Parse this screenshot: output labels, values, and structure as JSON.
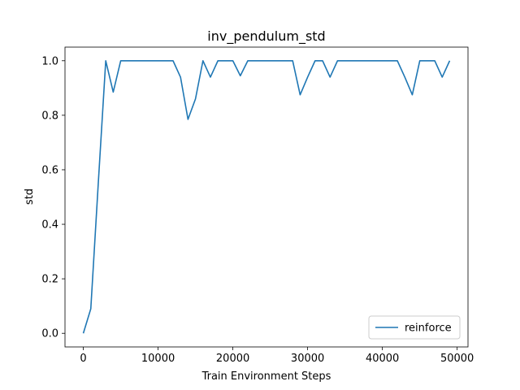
{
  "chart_data": {
    "type": "line",
    "title": "inv_pendulum_std",
    "xlabel": "Train Environment Steps",
    "ylabel": "std",
    "xlim": [
      -2450,
      51450
    ],
    "ylim": [
      -0.05,
      1.05
    ],
    "xticks": [
      0,
      10000,
      20000,
      30000,
      40000,
      50000
    ],
    "yticks": [
      0.0,
      0.2,
      0.4,
      0.6,
      0.8,
      1.0
    ],
    "xtick_labels": [
      "0",
      "10000",
      "20000",
      "30000",
      "40000",
      "50000"
    ],
    "ytick_labels": [
      "0.0",
      "0.2",
      "0.4",
      "0.6",
      "0.8",
      "1.0"
    ],
    "grid": false,
    "legend_position": "lower-right",
    "series": [
      {
        "name": "reinforce",
        "color": "#1f77b4",
        "x": [
          0,
          1000,
          2000,
          3000,
          4000,
          5000,
          6000,
          7000,
          8000,
          9000,
          10000,
          11000,
          12000,
          13000,
          14000,
          15000,
          16000,
          17000,
          18000,
          19000,
          20000,
          21000,
          22000,
          23000,
          24000,
          25000,
          26000,
          27000,
          28000,
          29000,
          30000,
          31000,
          32000,
          33000,
          34000,
          35000,
          36000,
          37000,
          38000,
          39000,
          40000,
          41000,
          42000,
          43000,
          44000,
          45000,
          46000,
          47000,
          48000,
          49000
        ],
        "y": [
          0.0,
          0.09,
          0.55,
          1.0,
          0.885,
          1.0,
          1.0,
          1.0,
          1.0,
          1.0,
          1.0,
          1.0,
          1.0,
          0.94,
          0.785,
          0.86,
          1.0,
          0.94,
          1.0,
          1.0,
          1.0,
          0.945,
          1.0,
          1.0,
          1.0,
          1.0,
          1.0,
          1.0,
          1.0,
          0.875,
          0.94,
          1.0,
          1.0,
          0.94,
          1.0,
          1.0,
          1.0,
          1.0,
          1.0,
          1.0,
          1.0,
          1.0,
          1.0,
          0.94,
          0.875,
          1.0,
          1.0,
          1.0,
          0.94,
          1.0
        ]
      }
    ]
  }
}
